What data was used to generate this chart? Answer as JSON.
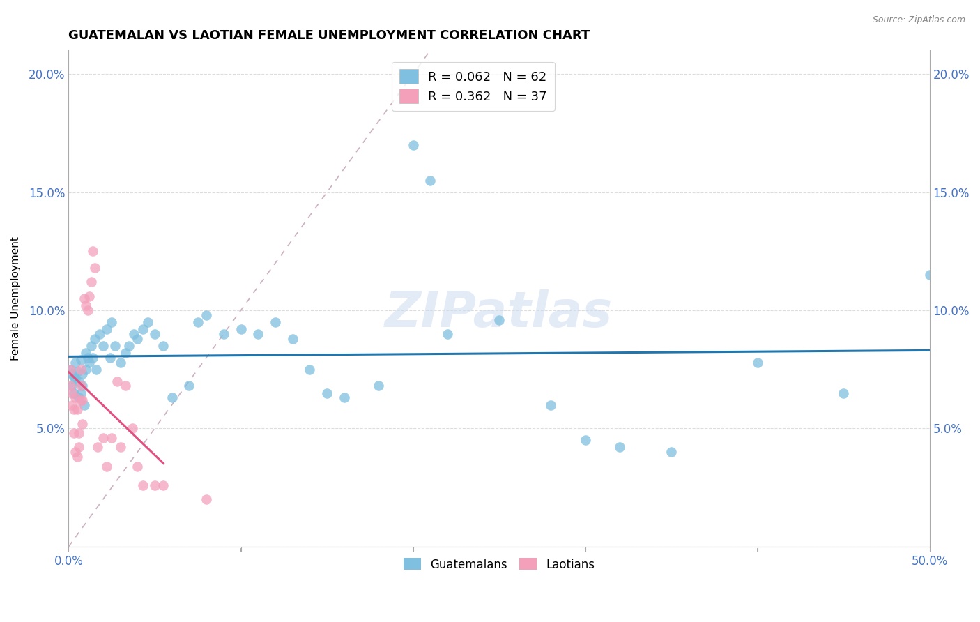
{
  "title": "GUATEMALAN VS LAOTIAN FEMALE UNEMPLOYMENT CORRELATION CHART",
  "source": "Source: ZipAtlas.com",
  "ylabel": "Female Unemployment",
  "xlim": [
    0.0,
    0.5
  ],
  "ylim": [
    0.0,
    0.21
  ],
  "xticks": [
    0.0,
    0.1,
    0.2,
    0.3,
    0.4,
    0.5
  ],
  "xtick_labels": [
    "0.0%",
    "",
    "",
    "",
    "",
    "50.0%"
  ],
  "yticks": [
    0.0,
    0.05,
    0.1,
    0.15,
    0.2
  ],
  "ytick_labels_left": [
    "",
    "5.0%",
    "10.0%",
    "15.0%",
    "20.0%"
  ],
  "ytick_labels_right": [
    "",
    "5.0%",
    "10.0%",
    "15.0%",
    "20.0%"
  ],
  "guatemalan_color": "#7fbfdf",
  "laotian_color": "#f4a0bb",
  "trend_blue": "#2176ae",
  "trend_pink": "#e05080",
  "diag_color": "#ccb0c0",
  "guatemalan_R": 0.062,
  "guatemalan_N": 62,
  "laotian_R": 0.362,
  "laotian_N": 37,
  "legend_labels": [
    "Guatemalans",
    "Laotians"
  ],
  "watermark": "ZIPatlas",
  "background_color": "#ffffff",
  "grid_color": "#dddddd",
  "axis_color": "#4472c4",
  "guatemalan_points_x": [
    0.001,
    0.002,
    0.002,
    0.003,
    0.003,
    0.004,
    0.004,
    0.005,
    0.006,
    0.006,
    0.007,
    0.007,
    0.008,
    0.008,
    0.009,
    0.01,
    0.01,
    0.011,
    0.012,
    0.013,
    0.014,
    0.015,
    0.016,
    0.018,
    0.02,
    0.022,
    0.024,
    0.025,
    0.027,
    0.03,
    0.033,
    0.035,
    0.038,
    0.04,
    0.043,
    0.046,
    0.05,
    0.055,
    0.06,
    0.07,
    0.075,
    0.08,
    0.09,
    0.1,
    0.11,
    0.12,
    0.13,
    0.14,
    0.15,
    0.16,
    0.18,
    0.2,
    0.21,
    0.22,
    0.25,
    0.28,
    0.3,
    0.32,
    0.35,
    0.4,
    0.45,
    0.5
  ],
  "guatemalan_points_y": [
    0.075,
    0.073,
    0.068,
    0.072,
    0.065,
    0.071,
    0.078,
    0.074,
    0.063,
    0.07,
    0.065,
    0.079,
    0.068,
    0.073,
    0.06,
    0.075,
    0.082,
    0.08,
    0.078,
    0.085,
    0.08,
    0.088,
    0.075,
    0.09,
    0.085,
    0.092,
    0.08,
    0.095,
    0.085,
    0.078,
    0.082,
    0.085,
    0.09,
    0.088,
    0.092,
    0.095,
    0.09,
    0.085,
    0.063,
    0.068,
    0.095,
    0.098,
    0.09,
    0.092,
    0.09,
    0.095,
    0.088,
    0.075,
    0.065,
    0.063,
    0.068,
    0.17,
    0.155,
    0.09,
    0.096,
    0.06,
    0.045,
    0.042,
    0.04,
    0.078,
    0.065,
    0.115
  ],
  "laotian_points_x": [
    0.001,
    0.001,
    0.002,
    0.002,
    0.003,
    0.003,
    0.004,
    0.004,
    0.005,
    0.005,
    0.006,
    0.006,
    0.007,
    0.007,
    0.007,
    0.008,
    0.008,
    0.009,
    0.01,
    0.011,
    0.012,
    0.013,
    0.014,
    0.015,
    0.017,
    0.02,
    0.022,
    0.025,
    0.028,
    0.03,
    0.033,
    0.037,
    0.04,
    0.043,
    0.05,
    0.055,
    0.08
  ],
  "laotian_points_y": [
    0.075,
    0.068,
    0.065,
    0.06,
    0.058,
    0.048,
    0.04,
    0.063,
    0.038,
    0.058,
    0.042,
    0.048,
    0.075,
    0.068,
    0.062,
    0.062,
    0.052,
    0.105,
    0.102,
    0.1,
    0.106,
    0.112,
    0.125,
    0.118,
    0.042,
    0.046,
    0.034,
    0.046,
    0.07,
    0.042,
    0.068,
    0.05,
    0.034,
    0.026,
    0.026,
    0.026,
    0.02
  ]
}
